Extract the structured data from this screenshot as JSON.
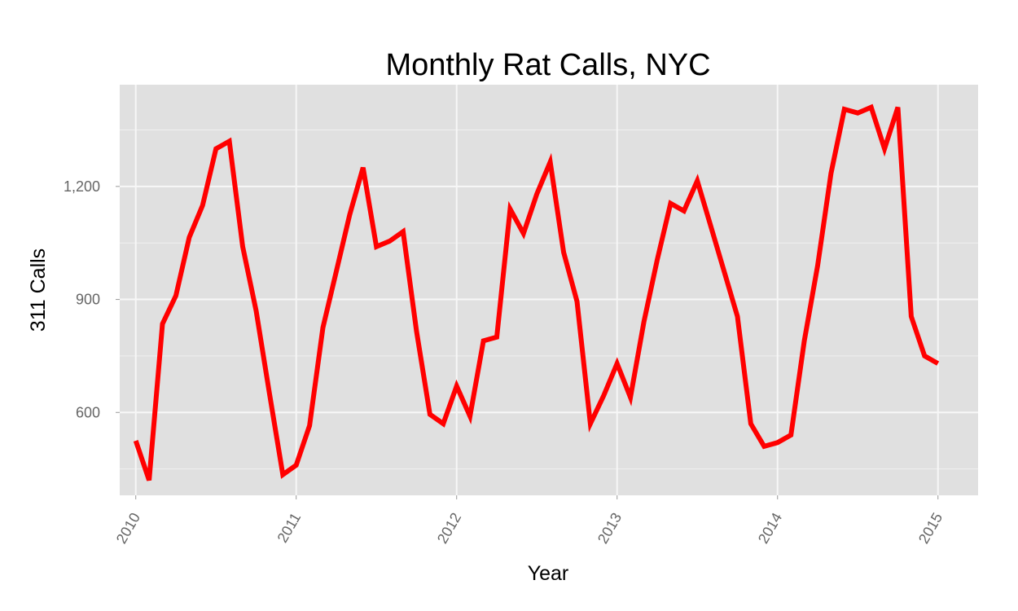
{
  "chart_data": {
    "type": "line",
    "title": "Monthly Rat Calls, NYC",
    "xlabel": "Year",
    "ylabel": "311 Calls",
    "x_ticks": [
      "2010",
      "2011",
      "2012",
      "2013",
      "2014",
      "2015"
    ],
    "y_ticks": [
      "600",
      "900",
      "1,200"
    ],
    "y_tick_values": [
      600,
      900,
      1200
    ],
    "xlim": [
      2009.9,
      2015.25
    ],
    "ylim": [
      380,
      1470
    ],
    "grid": true,
    "legend": "none",
    "series": [
      {
        "color": "#ff0000",
        "x": [
          "2010-01",
          "2010-02",
          "2010-03",
          "2010-04",
          "2010-05",
          "2010-06",
          "2010-07",
          "2010-08",
          "2010-09",
          "2010-10",
          "2010-11",
          "2010-12",
          "2011-01",
          "2011-02",
          "2011-03",
          "2011-04",
          "2011-05",
          "2011-06",
          "2011-07",
          "2011-08",
          "2011-09",
          "2011-10",
          "2011-11",
          "2011-12",
          "2012-01",
          "2012-02",
          "2012-03",
          "2012-04",
          "2012-05",
          "2012-06",
          "2012-07",
          "2012-08",
          "2012-09",
          "2012-10",
          "2012-11",
          "2012-12",
          "2013-01",
          "2013-02",
          "2013-03",
          "2013-04",
          "2013-05",
          "2013-06",
          "2013-07",
          "2013-08",
          "2013-09",
          "2013-10",
          "2013-11",
          "2013-12",
          "2014-01",
          "2014-02",
          "2014-03",
          "2014-04",
          "2014-05",
          "2014-06",
          "2014-07",
          "2014-08",
          "2014-09",
          "2014-10",
          "2014-11",
          "2014-12",
          "2015-01"
        ],
        "values": [
          525,
          420,
          835,
          910,
          1065,
          1150,
          1300,
          1320,
          1040,
          870,
          650,
          435,
          460,
          565,
          825,
          975,
          1125,
          1250,
          1040,
          1055,
          1080,
          815,
          595,
          570,
          670,
          590,
          790,
          800,
          1140,
          1075,
          1180,
          1265,
          1025,
          895,
          570,
          645,
          730,
          640,
          840,
          1005,
          1155,
          1135,
          1215,
          1095,
          975,
          855,
          570,
          510,
          520,
          540,
          790,
          990,
          1235,
          1405,
          1395,
          1410,
          1300,
          1410,
          855,
          750,
          730
        ]
      }
    ]
  }
}
